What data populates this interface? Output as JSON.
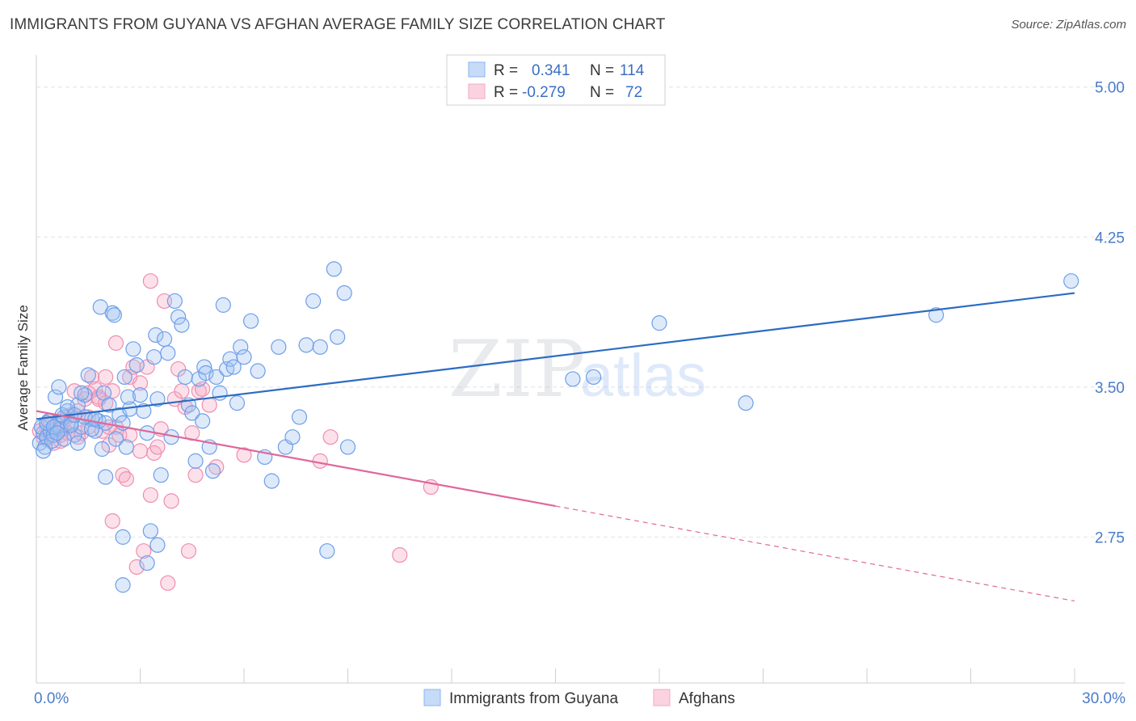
{
  "title": "IMMIGRANTS FROM GUYANA VS AFGHAN AVERAGE FAMILY SIZE CORRELATION CHART",
  "source": "Source: ZipAtlas.com",
  "watermark": {
    "zip": "ZIP",
    "atlas": "atlas"
  },
  "chart_data": {
    "type": "scatter",
    "ylabel": "Average Family Size",
    "xlim": [
      0,
      30
    ],
    "ylim": [
      2.02,
      5.12
    ],
    "x_tick_labels": [
      "0.0%",
      "30.0%"
    ],
    "y_ticks": [
      {
        "value": 2.75,
        "label": "2.75"
      },
      {
        "value": 3.5,
        "label": "3.50"
      },
      {
        "value": 4.25,
        "label": "4.25"
      },
      {
        "value": 5.0,
        "label": "5.00"
      }
    ],
    "grid": true,
    "legend_position": "top-center",
    "legend": [
      {
        "r_label": "R =",
        "r_value": "0.341",
        "n_label": "N =",
        "n_value": "114",
        "color": "#8ab4f0"
      },
      {
        "r_label": "R =",
        "r_value": "-0.279",
        "n_label": "N =",
        "n_value": "72",
        "color": "#f4a9c0"
      }
    ],
    "series": [
      {
        "name": "Immigrants from Guyana",
        "color": "#6d9eea",
        "line_color": "#2b6cc4",
        "trend": {
          "x0": 0,
          "y0": 3.34,
          "x1": 30,
          "y1": 3.97,
          "dashed_from": null
        },
        "points": [
          [
            0.1,
            3.22
          ],
          [
            0.2,
            3.27
          ],
          [
            0.15,
            3.3
          ],
          [
            0.3,
            3.25
          ],
          [
            0.25,
            3.2
          ],
          [
            0.4,
            3.28
          ],
          [
            0.35,
            3.33
          ],
          [
            0.5,
            3.26
          ],
          [
            0.6,
            3.31
          ],
          [
            0.45,
            3.23
          ],
          [
            0.7,
            3.29
          ],
          [
            0.8,
            3.35
          ],
          [
            0.55,
            3.45
          ],
          [
            0.9,
            3.38
          ],
          [
            1.0,
            3.32
          ],
          [
            0.65,
            3.5
          ],
          [
            1.1,
            3.26
          ],
          [
            1.2,
            3.41
          ],
          [
            0.75,
            3.36
          ],
          [
            1.3,
            3.3
          ],
          [
            1.4,
            3.46
          ],
          [
            1.5,
            3.56
          ],
          [
            1.6,
            3.34
          ],
          [
            1.7,
            3.28
          ],
          [
            1.8,
            3.33
          ],
          [
            1.9,
            3.19
          ],
          [
            2.0,
            3.05
          ],
          [
            1.85,
            3.9
          ],
          [
            1.95,
            3.47
          ],
          [
            2.1,
            3.41
          ],
          [
            2.2,
            3.87
          ],
          [
            2.25,
            3.86
          ],
          [
            2.3,
            3.24
          ],
          [
            2.4,
            3.36
          ],
          [
            2.5,
            3.32
          ],
          [
            2.6,
            3.2
          ],
          [
            2.7,
            3.39
          ],
          [
            2.5,
            2.75
          ],
          [
            2.55,
            3.55
          ],
          [
            2.65,
            3.45
          ],
          [
            2.8,
            3.69
          ],
          [
            2.9,
            3.61
          ],
          [
            3.0,
            3.46
          ],
          [
            3.1,
            3.38
          ],
          [
            3.2,
            3.27
          ],
          [
            3.3,
            2.78
          ],
          [
            3.4,
            3.65
          ],
          [
            3.45,
            3.76
          ],
          [
            3.5,
            3.44
          ],
          [
            3.6,
            3.06
          ],
          [
            3.7,
            3.74
          ],
          [
            3.8,
            3.67
          ],
          [
            3.9,
            3.25
          ],
          [
            4.0,
            3.93
          ],
          [
            4.1,
            3.85
          ],
          [
            4.2,
            3.81
          ],
          [
            4.3,
            3.55
          ],
          [
            4.4,
            3.41
          ],
          [
            4.5,
            3.37
          ],
          [
            4.6,
            3.13
          ],
          [
            4.7,
            3.54
          ],
          [
            4.8,
            3.33
          ],
          [
            4.85,
            3.6
          ],
          [
            4.9,
            3.57
          ],
          [
            5.0,
            3.2
          ],
          [
            5.1,
            3.08
          ],
          [
            5.2,
            3.55
          ],
          [
            5.3,
            3.47
          ],
          [
            5.4,
            3.91
          ],
          [
            5.5,
            3.59
          ],
          [
            5.6,
            3.64
          ],
          [
            5.7,
            3.6
          ],
          [
            5.8,
            3.42
          ],
          [
            5.9,
            3.7
          ],
          [
            6.0,
            3.65
          ],
          [
            6.2,
            3.83
          ],
          [
            6.4,
            3.58
          ],
          [
            6.6,
            3.15
          ],
          [
            6.8,
            3.03
          ],
          [
            7.0,
            3.7
          ],
          [
            7.2,
            3.2
          ],
          [
            7.4,
            3.25
          ],
          [
            7.6,
            3.35
          ],
          [
            7.8,
            3.71
          ],
          [
            8.0,
            3.93
          ],
          [
            8.2,
            3.7
          ],
          [
            8.4,
            2.68
          ],
          [
            8.6,
            4.09
          ],
          [
            8.7,
            3.75
          ],
          [
            8.9,
            3.97
          ],
          [
            9.0,
            3.2
          ],
          [
            3.2,
            2.62
          ],
          [
            3.5,
            2.71
          ],
          [
            2.5,
            2.51
          ],
          [
            15.5,
            3.54
          ],
          [
            16.1,
            3.55
          ],
          [
            18.0,
            3.82
          ],
          [
            20.5,
            3.42
          ],
          [
            26.0,
            3.86
          ],
          [
            29.9,
            4.03
          ],
          [
            0.3,
            3.32
          ],
          [
            0.5,
            3.3
          ],
          [
            0.2,
            3.18
          ],
          [
            0.8,
            3.24
          ],
          [
            1.0,
            3.31
          ],
          [
            1.2,
            3.22
          ],
          [
            1.4,
            3.35
          ],
          [
            1.6,
            3.29
          ],
          [
            0.9,
            3.4
          ],
          [
            0.6,
            3.27
          ],
          [
            1.1,
            3.36
          ],
          [
            1.3,
            3.47
          ],
          [
            1.7,
            3.34
          ],
          [
            2.0,
            3.32
          ]
        ]
      },
      {
        "name": "Afghans",
        "color": "#f08db0",
        "line_color": "#e0679a",
        "trend": {
          "x0": 0,
          "y0": 3.38,
          "x1": 30,
          "y1": 2.43,
          "dashed_from": 15
        },
        "points": [
          [
            0.1,
            3.28
          ],
          [
            0.2,
            3.25
          ],
          [
            0.3,
            3.3
          ],
          [
            0.4,
            3.27
          ],
          [
            0.5,
            3.22
          ],
          [
            0.6,
            3.32
          ],
          [
            0.7,
            3.26
          ],
          [
            0.8,
            3.29
          ],
          [
            0.9,
            3.35
          ],
          [
            1.0,
            3.31
          ],
          [
            1.1,
            3.48
          ],
          [
            1.2,
            3.38
          ],
          [
            1.3,
            3.27
          ],
          [
            1.4,
            3.44
          ],
          [
            1.5,
            3.35
          ],
          [
            1.6,
            3.55
          ],
          [
            1.7,
            3.49
          ],
          [
            1.8,
            3.45
          ],
          [
            1.9,
            3.28
          ],
          [
            2.0,
            3.42
          ],
          [
            2.1,
            3.21
          ],
          [
            2.2,
            3.48
          ],
          [
            2.3,
            3.3
          ],
          [
            2.4,
            3.26
          ],
          [
            2.2,
            2.83
          ],
          [
            2.5,
            3.06
          ],
          [
            2.6,
            3.04
          ],
          [
            2.7,
            3.55
          ],
          [
            2.8,
            3.6
          ],
          [
            2.9,
            2.6
          ],
          [
            3.0,
            3.52
          ],
          [
            3.1,
            2.68
          ],
          [
            3.2,
            3.6
          ],
          [
            3.3,
            2.96
          ],
          [
            3.4,
            3.17
          ],
          [
            3.5,
            3.2
          ],
          [
            3.6,
            3.29
          ],
          [
            3.7,
            3.93
          ],
          [
            3.8,
            2.52
          ],
          [
            3.9,
            2.93
          ],
          [
            4.0,
            3.44
          ],
          [
            4.1,
            3.59
          ],
          [
            4.2,
            3.48
          ],
          [
            4.3,
            3.4
          ],
          [
            4.4,
            2.68
          ],
          [
            4.5,
            3.27
          ],
          [
            4.6,
            3.06
          ],
          [
            4.7,
            3.48
          ],
          [
            4.8,
            3.49
          ],
          [
            5.0,
            3.41
          ],
          [
            3.3,
            4.03
          ],
          [
            2.3,
            3.72
          ],
          [
            1.5,
            3.47
          ],
          [
            1.8,
            3.44
          ],
          [
            2.0,
            3.55
          ],
          [
            6.0,
            3.16
          ],
          [
            8.2,
            3.13
          ],
          [
            8.5,
            3.25
          ],
          [
            11.4,
            3.0
          ],
          [
            10.5,
            2.66
          ],
          [
            0.3,
            3.24
          ],
          [
            0.6,
            3.29
          ],
          [
            0.9,
            3.27
          ],
          [
            1.2,
            3.25
          ],
          [
            1.5,
            3.3
          ],
          [
            0.4,
            3.33
          ],
          [
            0.7,
            3.23
          ],
          [
            1.0,
            3.36
          ],
          [
            2.7,
            3.26
          ],
          [
            3.0,
            3.18
          ],
          [
            5.2,
            3.1
          ],
          [
            2.1,
            3.3
          ]
        ]
      }
    ]
  }
}
